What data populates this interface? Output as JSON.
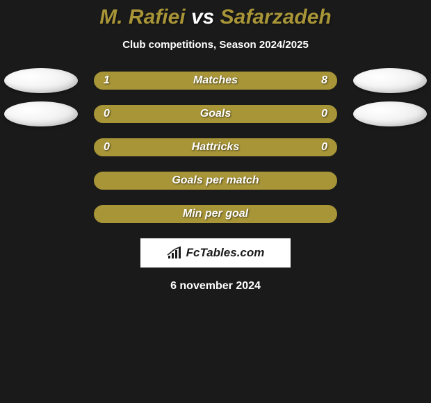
{
  "title": {
    "player1": "M. Rafiei",
    "vs": "vs",
    "player2": "Safarzadeh",
    "player1_color": "#a89538",
    "vs_color": "#ffffff",
    "player2_color": "#a89538"
  },
  "subtitle": "Club competitions, Season 2024/2025",
  "accent_color": "#a89538",
  "bg_color": "#1a1a1a",
  "photo_bg": "#f5f5f5",
  "rows": [
    {
      "label": "Matches",
      "left_val": "1",
      "right_val": "8",
      "left_pct": 11.1,
      "right_pct": 88.9,
      "show_photos": true
    },
    {
      "label": "Goals",
      "left_val": "0",
      "right_val": "0",
      "left_pct": 50,
      "right_pct": 50,
      "show_photos": true
    },
    {
      "label": "Hattricks",
      "left_val": "0",
      "right_val": "0",
      "left_pct": 50,
      "right_pct": 50,
      "show_photos": false
    },
    {
      "label": "Goals per match",
      "left_val": "",
      "right_val": "",
      "left_pct": 100,
      "right_pct": 0,
      "show_photos": false
    },
    {
      "label": "Min per goal",
      "left_val": "",
      "right_val": "",
      "left_pct": 100,
      "right_pct": 0,
      "show_photos": false
    }
  ],
  "logo": {
    "text": "FcTables.com",
    "bg": "#ffffff",
    "icon_color": "#1a1a1a"
  },
  "date": "6 november 2024"
}
